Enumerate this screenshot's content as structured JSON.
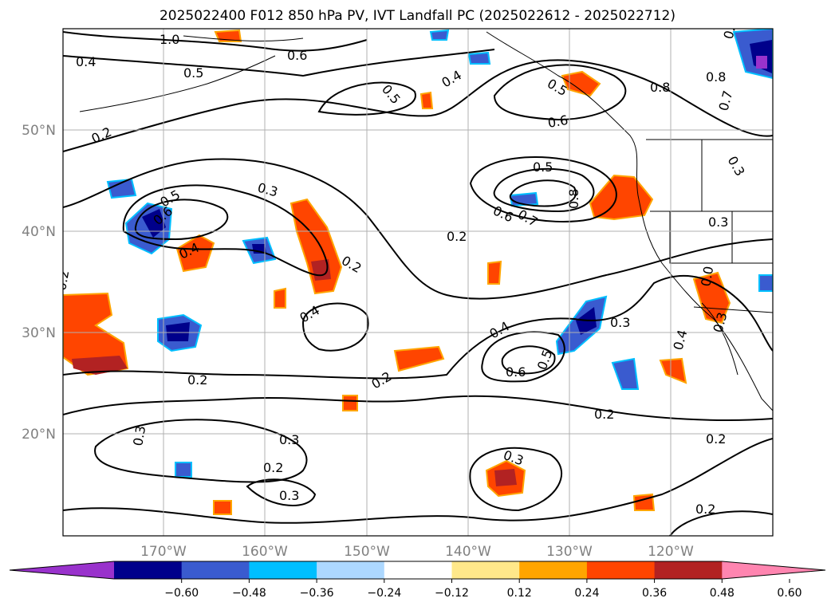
{
  "title": "2025022400 F012 850 hPa PV, IVT Landfall PC (2025022612 - 2025022712)",
  "lat_ticks": [
    "50°N",
    "40°N",
    "30°N",
    "20°N"
  ],
  "lon_ticks": [
    "170°W",
    "160°W",
    "150°W",
    "140°W",
    "130°W",
    "120°W"
  ],
  "colorbar": {
    "ticks": [
      "−0.60",
      "−0.48",
      "−0.36",
      "−0.24",
      "−0.12",
      "0.12",
      "0.24",
      "0.36",
      "0.48",
      "0.60"
    ],
    "colors": [
      "#9932cc",
      "#00008b",
      "#3a5bcf",
      "#00bfff",
      "#add8ff",
      "#ffffff",
      "#ffe88a",
      "#ffa500",
      "#ff4500",
      "#b22222",
      "#ff85b0"
    ]
  },
  "contour_labels": [
    "1.0",
    "0.4",
    "0.5",
    "0.6",
    "0.5",
    "0.4",
    "0.2",
    "0.3",
    "0.5",
    "0.6",
    "0.4",
    "0.2",
    "0.5",
    "0.6",
    "0.5",
    "0.8",
    "0.6",
    "0.7",
    "0.2",
    "0.8",
    "0.7",
    "0.8",
    "0.3",
    "0.3",
    "0.2",
    "0.4",
    "0.4",
    "0.2",
    "0.6",
    "0.5",
    "0.3",
    "0.4",
    "0.3",
    "0.2",
    "0.3",
    "0.3",
    "0.2",
    "0.3",
    "0.3",
    "0.2",
    "0.2",
    "0.0",
    "0.3",
    "0.2"
  ]
}
